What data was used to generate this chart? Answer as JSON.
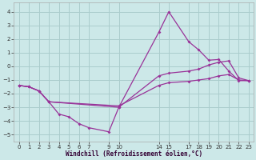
{
  "xlabel": "Windchill (Refroidissement éolien,°C)",
  "background_color": "#cce8e8",
  "grid_color": "#aacccc",
  "line_color": "#993399",
  "xlim": [
    -0.5,
    23.5
  ],
  "ylim": [
    -5.5,
    4.7
  ],
  "xticks": [
    0,
    1,
    2,
    3,
    4,
    5,
    6,
    7,
    9,
    10,
    14,
    15,
    17,
    18,
    19,
    20,
    21,
    22,
    23
  ],
  "yticks": [
    -5,
    -4,
    -3,
    -2,
    -1,
    0,
    1,
    2,
    3,
    4
  ],
  "line1_x": [
    0,
    1,
    2,
    3,
    4,
    5,
    6,
    7,
    9,
    10,
    14,
    15,
    17,
    18,
    19,
    20,
    21,
    22,
    23
  ],
  "line1_y": [
    -1.4,
    -1.5,
    -1.8,
    -2.6,
    -3.5,
    -3.7,
    -4.2,
    -4.5,
    -4.8,
    -3.0,
    2.5,
    4.0,
    1.8,
    1.2,
    0.45,
    0.5,
    -0.35,
    -1.05,
    -1.05
  ],
  "line2_x": [
    0,
    1,
    2,
    3,
    10,
    14,
    15,
    17,
    18,
    19,
    20,
    21,
    22,
    23
  ],
  "line2_y": [
    -1.4,
    -1.5,
    -1.8,
    -2.6,
    -3.0,
    -0.7,
    -0.5,
    -0.35,
    -0.2,
    0.1,
    0.3,
    0.4,
    -0.85,
    -1.05
  ],
  "line3_x": [
    0,
    1,
    2,
    3,
    10,
    14,
    15,
    17,
    18,
    19,
    20,
    21,
    22,
    23
  ],
  "line3_y": [
    -1.4,
    -1.5,
    -1.8,
    -2.6,
    -2.9,
    -1.4,
    -1.2,
    -1.1,
    -1.0,
    -0.9,
    -0.7,
    -0.6,
    -1.0,
    -1.05
  ]
}
